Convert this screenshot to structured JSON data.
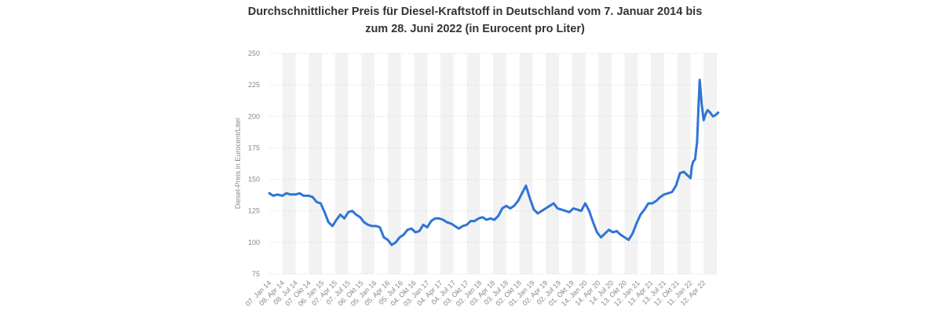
{
  "chart_data": {
    "type": "line",
    "title_line1": "Durchschnittlicher Preis für Diesel-Kraftstoff in Deutschland vom 7. Januar 2014 bis",
    "title_line2": "zum 28. Juni 2022 (in Eurocent pro Liter)",
    "ylabel": "Diesel-Preis in Eurocent/Liter",
    "xlabel": "",
    "ylim": [
      75,
      250
    ],
    "yticks": [
      75,
      100,
      125,
      150,
      175,
      200,
      225,
      250
    ],
    "grid": true,
    "line_color": "#2f74d6",
    "band_color": "#f2f2f2",
    "xtick_labels": [
      "07. Jan 14",
      "08. Apr 14",
      "08. Jul 14",
      "07. Okt 14",
      "06. Jan 15",
      "07. Apr 15",
      "07. Jul 15",
      "06. Okt 15",
      "05. Jan 16",
      "05. Apr 16",
      "05. Jul 16",
      "04. Okt 16",
      "03. Jan 17",
      "04. Apr 17",
      "04. Jul 17",
      "03. Okt 17",
      "02. Jan 18",
      "03. Apr 18",
      "03. Jul 18",
      "02. Okt 18",
      "01. Jan 19",
      "02. Apr 19",
      "02. Jul 19",
      "01. Okt 19",
      "14. Jan 20",
      "14. Apr 20",
      "14. Jul 20",
      "13. Okt 20",
      "12. Jan 21",
      "13. Apr 21",
      "13. Jul 21",
      "12. Okt 21",
      "11. Jan 22",
      "12. Apr 22"
    ],
    "series": [
      {
        "x": [
          0,
          0.3,
          0.6,
          1,
          1.3,
          1.6,
          2,
          2.3,
          2.6,
          3,
          3.3,
          3.6,
          3.9,
          4.2,
          4.5,
          4.8,
          5.1,
          5.4,
          5.7,
          6,
          6.3,
          6.6,
          6.9,
          7.2,
          7.5,
          7.8,
          8.1,
          8.4,
          8.7,
          9,
          9.3,
          9.6,
          9.9,
          10.2,
          10.5,
          10.8,
          11.1,
          11.4,
          11.7,
          12,
          12.3,
          12.6,
          12.9,
          13.2,
          13.5,
          13.8,
          14.1,
          14.4,
          14.7,
          15,
          15.3,
          15.6,
          15.9,
          16.2,
          16.5,
          16.8,
          17.1,
          17.4,
          17.7,
          18,
          18.3,
          18.6,
          18.9,
          19.2,
          19.5,
          19.8,
          20.1,
          20.4,
          20.7,
          21,
          21.3,
          21.6,
          21.9,
          22.2,
          22.5,
          22.8,
          23.1,
          23.4,
          23.7,
          24,
          24.3,
          24.6,
          24.9,
          25.2,
          25.5,
          25.8,
          26.1,
          26.4,
          26.7,
          27,
          27.3,
          27.6,
          27.9,
          28.2,
          28.5,
          28.8,
          29.1,
          29.4,
          29.7,
          30,
          30.3,
          30.6,
          30.9,
          31.2,
          31.5,
          31.8,
          32,
          32.1,
          32.2,
          32.35,
          32.5,
          32.6,
          32.7,
          32.85,
          33,
          33.15,
          33.3,
          33.5,
          33.7,
          33.9,
          34.1
        ],
        "y": [
          139,
          137,
          138,
          137,
          139,
          138,
          138,
          139,
          137,
          137,
          136,
          132,
          131,
          124,
          116,
          113,
          118,
          122,
          119,
          124,
          125,
          122,
          120,
          116,
          114,
          113,
          113,
          112,
          104,
          102,
          98,
          100,
          104,
          106,
          110,
          111,
          108,
          109,
          114,
          112,
          117,
          119,
          119,
          118,
          116,
          115,
          113,
          111,
          113,
          114,
          117,
          117,
          119,
          120,
          118,
          119,
          118,
          121,
          127,
          129,
          127,
          129,
          133,
          139,
          145,
          135,
          126,
          123,
          125,
          127,
          129,
          131,
          127,
          126,
          125,
          124,
          127,
          126,
          125,
          131,
          125,
          116,
          108,
          104,
          107,
          110,
          108,
          109,
          106,
          104,
          102,
          107,
          115,
          122,
          126,
          131,
          131,
          133,
          136,
          138,
          139,
          140,
          145,
          155,
          156,
          153,
          151,
          160,
          164,
          166,
          180,
          205,
          229,
          210,
          197,
          202,
          205,
          203,
          200,
          201,
          203
        ]
      }
    ]
  }
}
